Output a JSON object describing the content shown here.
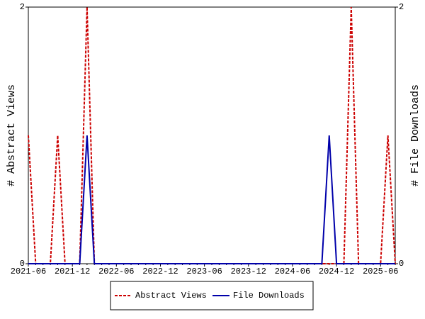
{
  "chart_data": {
    "type": "line",
    "y_label": "# Abstract Views",
    "y2_label": "# File Downloads",
    "categories": [
      "2021-06",
      null,
      null,
      null,
      null,
      null,
      "2021-12",
      null,
      null,
      null,
      null,
      null,
      "2022-06",
      null,
      null,
      null,
      null,
      null,
      "2022-12",
      null,
      null,
      null,
      null,
      null,
      "2023-06",
      null,
      null,
      null,
      null,
      null,
      "2023-12",
      null,
      null,
      null,
      null,
      null,
      "2024-06",
      null,
      null,
      null,
      null,
      null,
      "2024-12",
      null,
      null,
      null,
      null,
      null,
      "2025-06",
      null,
      null
    ],
    "series": [
      {
        "name": "Abstract Views",
        "color": "#cc0000",
        "dash": true,
        "values": [
          1,
          0,
          0,
          0,
          1,
          0,
          0,
          0,
          2,
          0,
          0,
          0,
          0,
          0,
          0,
          0,
          0,
          0,
          0,
          0,
          0,
          0,
          0,
          0,
          0,
          0,
          0,
          0,
          0,
          0,
          0,
          0,
          0,
          0,
          0,
          0,
          0,
          0,
          0,
          0,
          0,
          0,
          0,
          0,
          2,
          0,
          0,
          0,
          0,
          1,
          0
        ]
      },
      {
        "name": "File Downloads",
        "color": "#0000aa",
        "dash": false,
        "axis": "y2",
        "values": [
          0,
          0,
          0,
          0,
          0,
          0,
          0,
          0,
          1,
          0,
          0,
          0,
          0,
          0,
          0,
          0,
          0,
          0,
          0,
          0,
          0,
          0,
          0,
          0,
          0,
          0,
          0,
          0,
          0,
          0,
          0,
          0,
          0,
          0,
          0,
          0,
          0,
          0,
          0,
          0,
          0,
          1,
          0,
          0,
          0,
          0,
          0,
          0,
          0,
          0,
          0
        ]
      }
    ],
    "ylim": [
      0,
      2
    ],
    "yticks": [
      0,
      2
    ],
    "y2lim": [
      0,
      2
    ],
    "y2ticks": [
      0,
      2
    ],
    "legend": "bottom"
  }
}
